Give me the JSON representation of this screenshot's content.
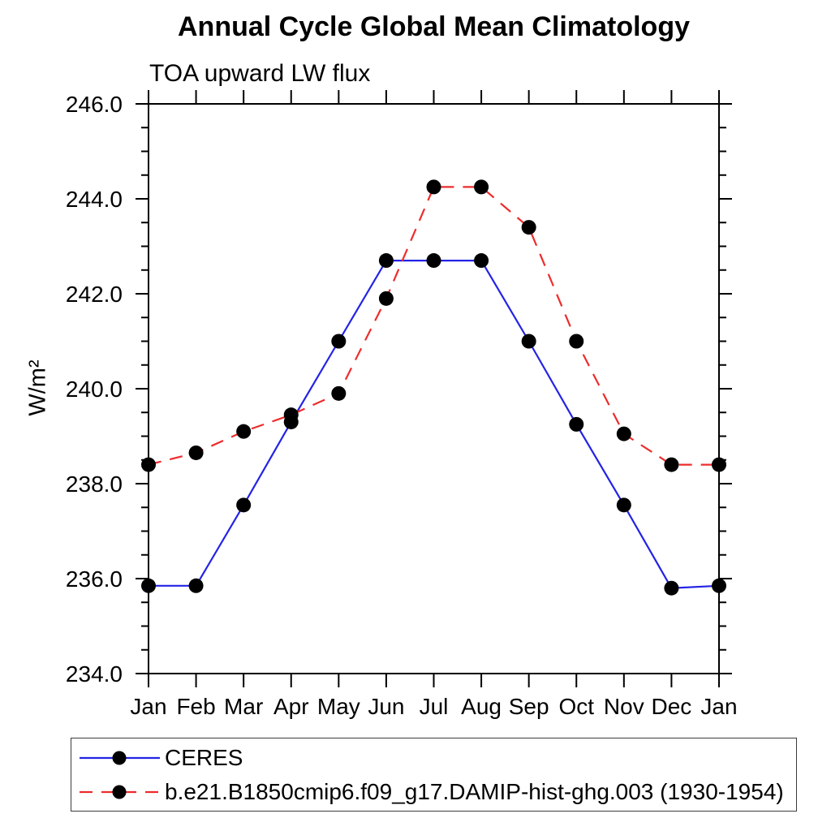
{
  "chart_data": {
    "type": "line",
    "title": "Annual Cycle Global Mean Climatology",
    "subtitle": "TOA upward LW flux",
    "ylabel": "W/m²",
    "ylim": [
      234.0,
      246.0
    ],
    "ytick_major": 2.0,
    "ytick_minor": 0.5,
    "ytick_label_format": "one_decimal",
    "grid": false,
    "legend_position": "bottom-left",
    "categories": [
      "Jan",
      "Feb",
      "Mar",
      "Apr",
      "May",
      "Jun",
      "Jul",
      "Aug",
      "Sep",
      "Oct",
      "Nov",
      "Dec",
      "Jan"
    ],
    "series": [
      {
        "name": "CERES",
        "color": "#2323e6",
        "line_style": "solid",
        "marker": "filled-circle",
        "marker_color": "#000000",
        "values": [
          235.85,
          235.85,
          237.55,
          239.3,
          241.0,
          242.7,
          242.7,
          242.7,
          241.0,
          239.25,
          237.55,
          235.8,
          235.85
        ]
      },
      {
        "name": "b.e21.B1850cmip6.f09_g17.DAMIP-hist-ghg.003 (1930-1954)",
        "color": "#ee2c2c",
        "line_style": "dashed",
        "marker": "filled-circle",
        "marker_color": "#000000",
        "values": [
          238.4,
          238.65,
          239.1,
          239.45,
          239.9,
          241.9,
          244.25,
          244.25,
          243.4,
          241.0,
          239.05,
          238.4,
          238.4
        ]
      }
    ],
    "axis_color": "#000000"
  },
  "layout_note_values_visible_only": true
}
